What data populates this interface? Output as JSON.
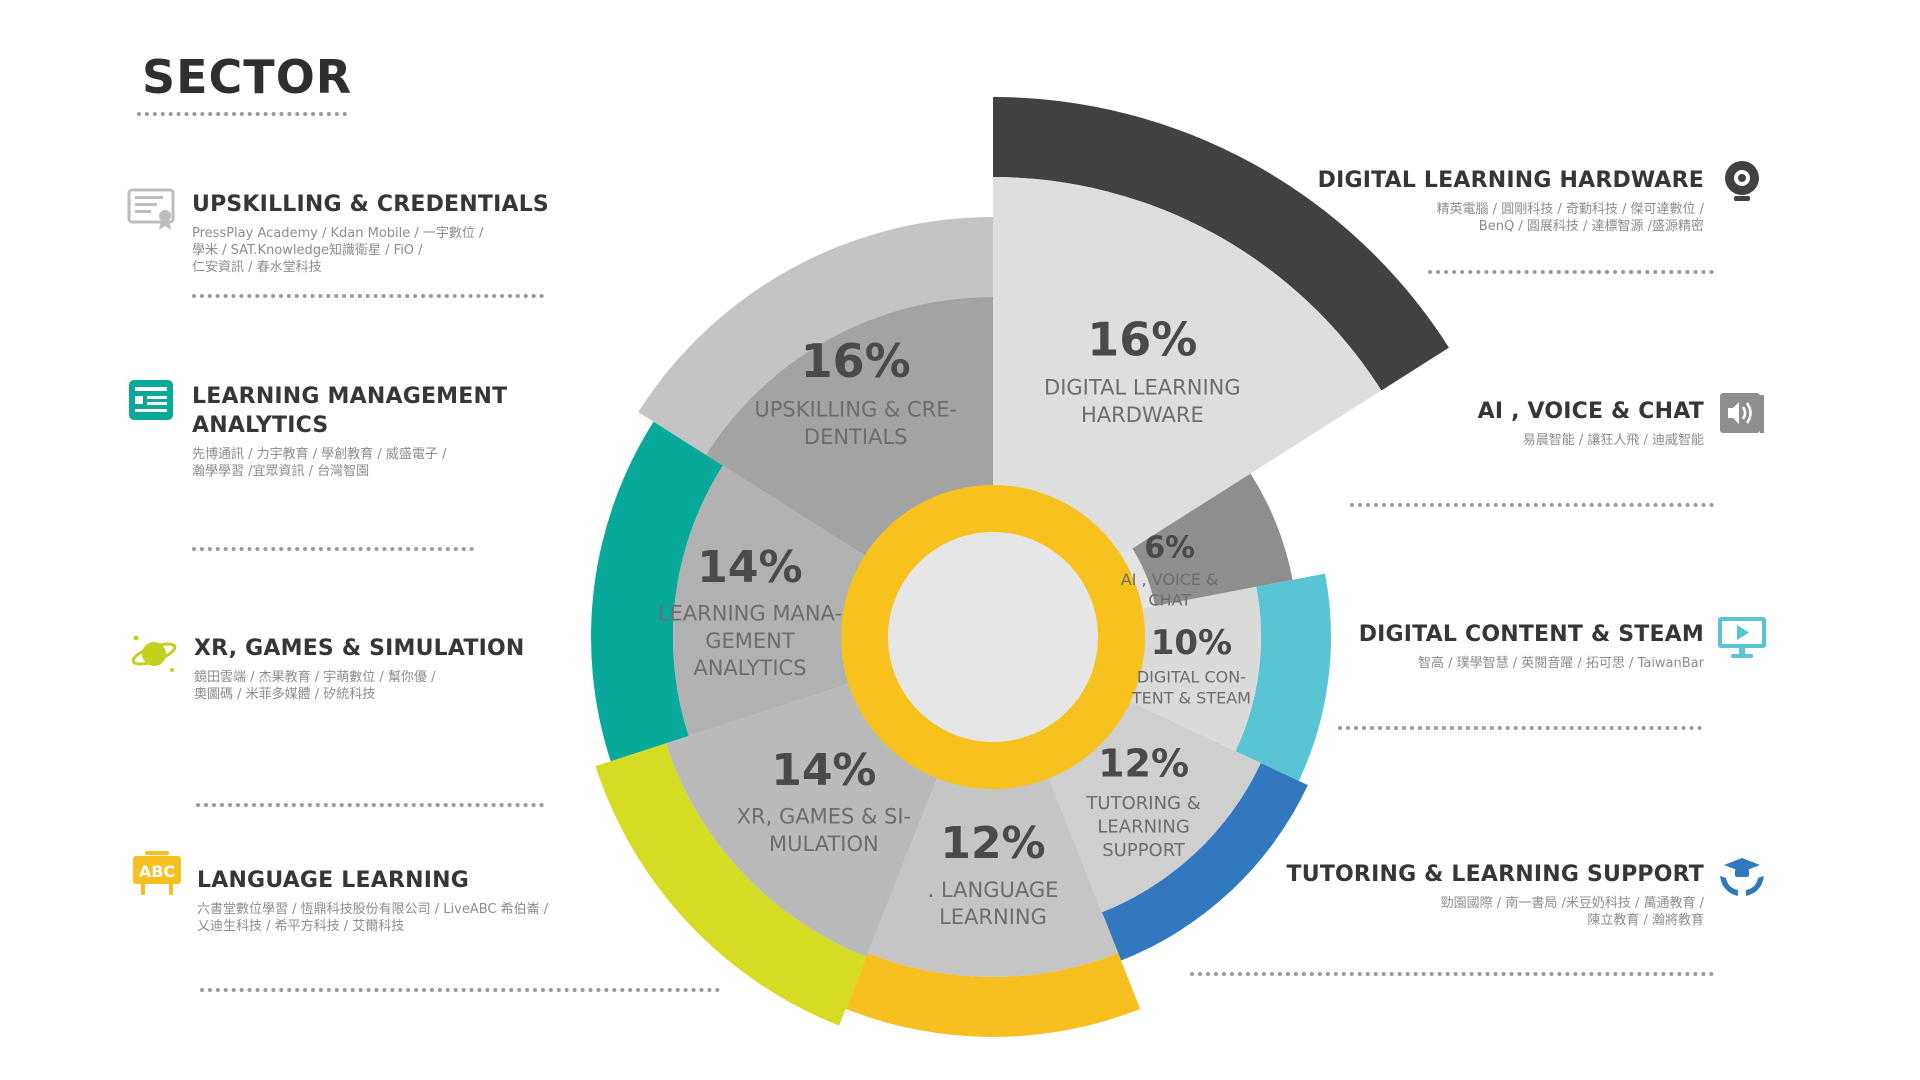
{
  "page": {
    "title": "SECTOR"
  },
  "chart_data": {
    "type": "pie",
    "title": "SECTOR",
    "slices": [
      {
        "key": "hw",
        "label_lines": [
          "DIGITAL LEARNING",
          "HARDWARE"
        ],
        "percent_label": "16%",
        "value": 16,
        "color": "#dedede",
        "outer_color": "#414042"
      },
      {
        "key": "ai",
        "label_lines": [
          "AI , VOICE &",
          "CHAT"
        ],
        "percent_label": "6%",
        "value": 6,
        "color": "#e3e3e3",
        "outer_color": "#8e8e90"
      },
      {
        "key": "dc",
        "label_lines": [
          "DIGITAL CON-",
          "TENT & STEAM"
        ],
        "percent_label": "10%",
        "value": 10,
        "color": "#dadada",
        "outer_color": "#58c4d4"
      },
      {
        "key": "tut",
        "label_lines": [
          "TUTORING &",
          "LEARNING",
          "SUPPORT"
        ],
        "percent_label": "12%",
        "value": 12,
        "color": "#cfcfcf",
        "outer_color": "#3278be"
      },
      {
        "key": "lang",
        "label_lines": [
          ".  LANGUAGE",
          "LEARNING"
        ],
        "percent_label": "12%",
        "value": 12,
        "color": "#c5c5c5",
        "outer_color": "#f7bf1f"
      },
      {
        "key": "xr",
        "label_lines": [
          "XR, GAMES & SI-",
          "MULATION"
        ],
        "percent_label": "14%",
        "value": 14,
        "color": "#bababa",
        "outer_color": "#d4dc24"
      },
      {
        "key": "lma",
        "label_lines": [
          "LEARNING MANA-",
          "GEMENT",
          "ANALYTICS"
        ],
        "percent_label": "14%",
        "value": 14,
        "color": "#b1b1b1",
        "outer_color": "#08a89a"
      },
      {
        "key": "up",
        "label_lines": [
          "UPSKILLING & CRE-",
          "DENTIALS"
        ],
        "percent_label": "16%",
        "value": 16,
        "color": "#a3a3a3",
        "outer_color": "#c4c4c4"
      }
    ],
    "center_ring_color": "#f7c21e",
    "center_hole_color": "#e6e6e6"
  },
  "sectors": {
    "upskilling": {
      "title": "UPSKILLING & CREDENTIALS",
      "companies": "PressPlay Academy / Kdan Mobile / 一宇數位 /\n學米 / SAT.Knowledge知識衛星 / FiO /\n仁安資訊 / 春水堂科技",
      "icon": "certificate-icon",
      "icon_color": "#bdbdbd"
    },
    "lma": {
      "title": "LEARNING MANAGEMENT\nANALYTICS",
      "companies": "先博通訊 / 力宇教育 / 學創教育 / 威盛電子 /\n瀚學學習 /宜眾資訊 / 台灣智園",
      "icon": "dashboard-icon",
      "icon_color": "#08a89a"
    },
    "xr": {
      "title": "XR, GAMES & SIMULATION",
      "companies": "鏡田雲端 / 杰果教育 / 宇萌數位 / 幫你優 /\n奧圖碼 / 米菲多媒體 / 矽統科技",
      "icon": "planet-icon",
      "icon_color": "#c2d11f"
    },
    "language": {
      "title": "LANGUAGE LEARNING",
      "companies": "六書堂數位學習 / 恆鼎科技股份有限公司 / LiveABC 希伯崙 /\n乂迪生科技 / 希平方科技 / 艾爾科技",
      "icon": "abc-board-icon",
      "icon_color": "#f7bf1f",
      "icon_text": "ABC"
    },
    "hardware": {
      "title": "DIGITAL LEARNING HARDWARE",
      "companies": "精英電腦 / 圓剛科技 / 奇勤科技 / 傑可達數位 /\nBenQ / 圓展科技 / 達標智源 /盛源精密",
      "icon": "webcam-icon",
      "icon_color": "#414042"
    },
    "ai": {
      "title": "AI , VOICE & CHAT",
      "companies": "易晨智能 / 讓狂人飛 / 迪威智能",
      "icon": "speaker-book-icon",
      "icon_color": "#8e8e90"
    },
    "steam": {
      "title": "DIGITAL CONTENT & STEAM",
      "companies": "智高 / 璞學智慧 / 英閱音躍 / 拓可思 / TaiwanBar",
      "icon": "monitor-play-icon",
      "icon_color": "#58c4d4"
    },
    "tutoring": {
      "title": "TUTORING & LEARNING SUPPORT",
      "companies": "勁園國際 / 南一書局 /米豆奶科技 / 萬通教育 /\n陳立教育 / 瀚將教育",
      "icon": "hands-graduate-icon",
      "icon_color": "#3278be"
    }
  }
}
